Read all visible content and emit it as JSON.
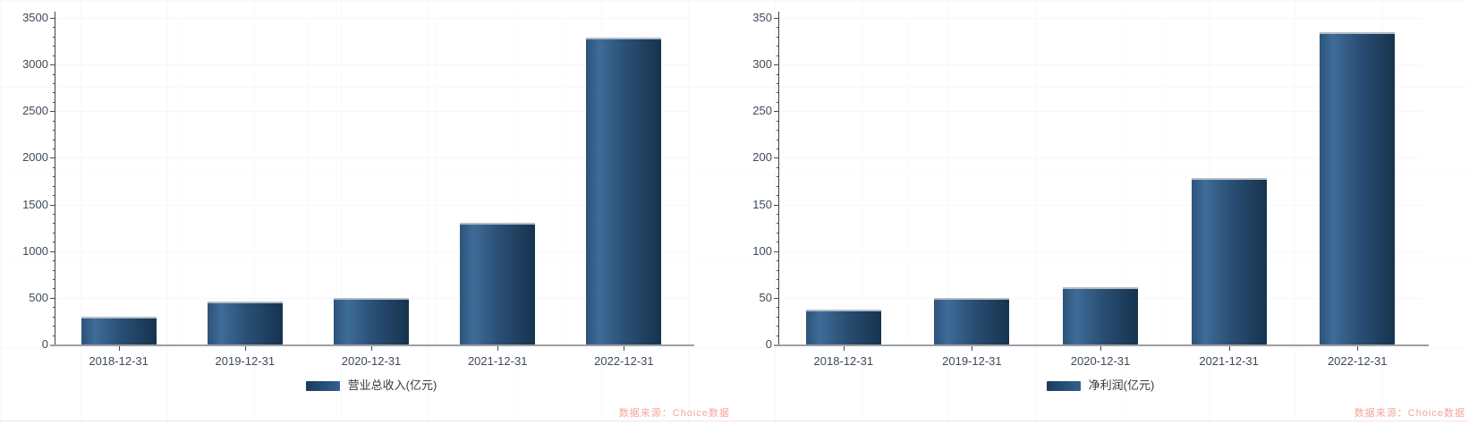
{
  "watermark": {
    "text": "数据来源：Choice数据"
  },
  "colors": {
    "axis_label": "#3e4a58",
    "legend_text": "#333a44",
    "tick": "#4a4a4a",
    "axis_y_line": "#3f4448",
    "axis_x_line": "#9b9fa4",
    "grid_h": "#f7f7f7",
    "grid_v": "#fafafa",
    "watermark": "#f4a59d",
    "bottom_line": "#ece5e7",
    "legend_swatch": [
      "#1b3b5d",
      "#32618e"
    ],
    "bar_cap": "#b3bcc6"
  },
  "chart_data": [
    {
      "type": "bar",
      "title": "",
      "legend": "营业总收入(亿元)",
      "categories": [
        "2018-12-31",
        "2019-12-31",
        "2020-12-31",
        "2021-12-31",
        "2022-12-31"
      ],
      "values": [
        296,
        458,
        503,
        1304,
        3286
      ],
      "ylabel": "",
      "xlabel": "",
      "ylim": [
        0,
        3500
      ],
      "y_tick_step": 500,
      "y_minor_per_major": 5,
      "grid": "faint",
      "legend_position": "bottom-center",
      "bar_gradient": [
        "#2d5379",
        "#3e6c99",
        "#2b5076",
        "#16334e"
      ]
    },
    {
      "type": "bar",
      "title": "",
      "legend": "净利润(亿元)",
      "categories": [
        "2018-12-31",
        "2019-12-31",
        "2020-12-31",
        "2021-12-31",
        "2022-12-31"
      ],
      "values": [
        37.1,
        49.5,
        61.2,
        178.6,
        334.6
      ],
      "ylabel": "",
      "xlabel": "",
      "ylim": [
        0,
        350
      ],
      "y_tick_step": 50,
      "y_minor_per_major": 5,
      "grid": "faint",
      "legend_position": "bottom-center",
      "bar_gradient": [
        "#2d5379",
        "#3e6c99",
        "#2b5076",
        "#16334e"
      ]
    }
  ]
}
